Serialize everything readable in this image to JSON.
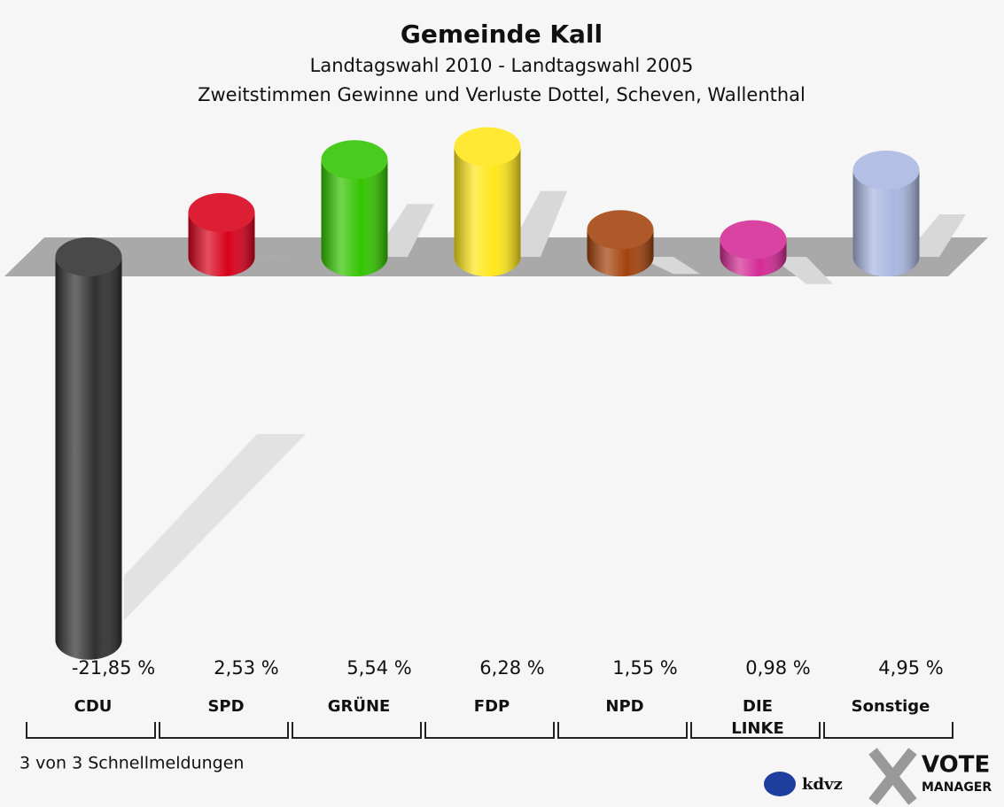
{
  "chart_data": {
    "type": "bar",
    "title": "Gemeinde Kall",
    "subtitle": "Landtagswahl 2010 - Landtagswahl 2005",
    "subtitle2": "Zweitstimmen Gewinne und Verluste Dottel, Scheven, Wallenthal",
    "categories": [
      "CDU",
      "SPD",
      "GRÜNE",
      "FDP",
      "NPD",
      "DIE LINKE",
      "Sonstige"
    ],
    "values": [
      -21.85,
      2.53,
      5.54,
      6.28,
      1.55,
      0.98,
      4.95
    ],
    "value_labels": [
      "-21,85 %",
      "2,53 %",
      "5,54 %",
      "6,28 %",
      "1,55 %",
      "0,98 %",
      "4,95 %"
    ],
    "colors": [
      "#303030",
      "#d9001b",
      "#33c400",
      "#ffe619",
      "#a3420c",
      "#d42a94",
      "#a9b7e1"
    ],
    "footer": "3 von 3 Schnellmeldungen",
    "logos": [
      "kdvz",
      "VOTE",
      "MANAGER"
    ]
  }
}
